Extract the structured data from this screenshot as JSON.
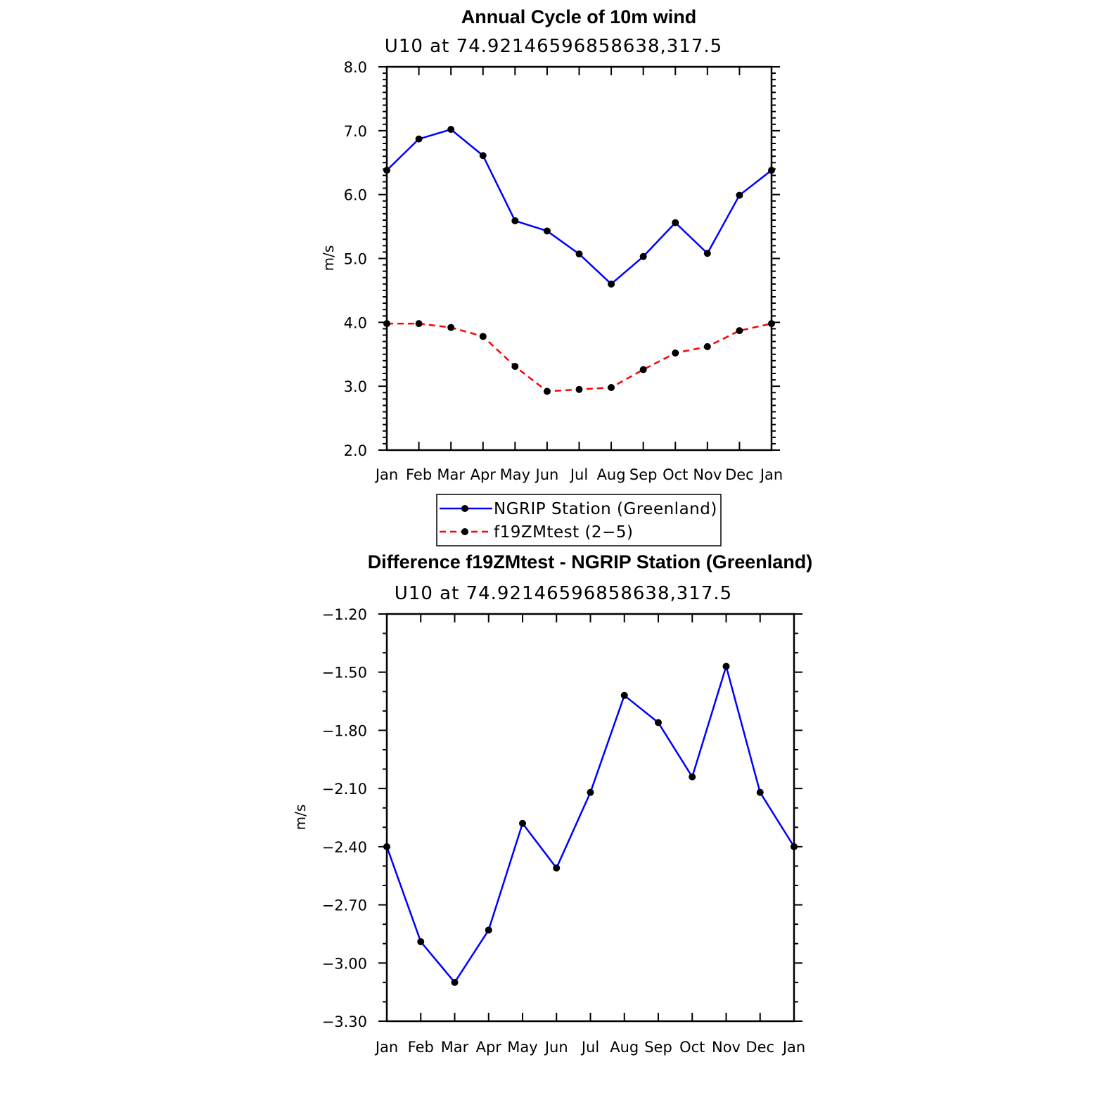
{
  "chart_data": [
    {
      "type": "line",
      "title": "Annual Cycle of 10m wind",
      "subtitle": "U10  at  74.92146596858638,317.5",
      "xlabel": "",
      "ylabel": "m/s",
      "categories": [
        "Jan",
        "Feb",
        "Mar",
        "Apr",
        "May",
        "Jun",
        "Jul",
        "Aug",
        "Sep",
        "Oct",
        "Nov",
        "Dec",
        "Jan"
      ],
      "ylim": [
        2.0,
        8.0
      ],
      "yticks": [
        2.0,
        3.0,
        4.0,
        5.0,
        6.0,
        7.0,
        8.0
      ],
      "ytick_labels": [
        "2.0",
        "3.0",
        "4.0",
        "5.0",
        "6.0",
        "7.0",
        "8.0"
      ],
      "series": [
        {
          "name": "NGRIP Station (Greenland)",
          "color": "#0000ff",
          "dash": "solid",
          "values": [
            6.38,
            6.87,
            7.02,
            6.61,
            5.59,
            5.43,
            5.07,
            4.6,
            5.03,
            5.56,
            5.08,
            5.99,
            6.38
          ]
        },
        {
          "name": "f19ZMtest (2-5)",
          "color": "#ff0000",
          "dash": "dashed",
          "values": [
            3.98,
            3.98,
            3.92,
            3.78,
            3.31,
            2.92,
            2.95,
            2.98,
            3.26,
            3.52,
            3.62,
            3.87,
            3.98
          ]
        }
      ],
      "legend": {
        "position": "bottom",
        "entries": [
          "NGRIP Station (Greenland)",
          "f19ZMtest (2−5)"
        ]
      }
    },
    {
      "type": "line",
      "title": "Difference f19ZMtest - NGRIP Station (Greenland)",
      "subtitle": "U10  at  74.92146596858638,317.5",
      "xlabel": "",
      "ylabel": "m/s",
      "categories": [
        "Jan",
        "Feb",
        "Mar",
        "Apr",
        "May",
        "Jun",
        "Jul",
        "Aug",
        "Sep",
        "Oct",
        "Nov",
        "Dec",
        "Jan"
      ],
      "ylim": [
        -3.3,
        -1.2
      ],
      "yticks": [
        -3.3,
        -3.0,
        -2.7,
        -2.4,
        -2.1,
        -1.8,
        -1.5,
        -1.2
      ],
      "ytick_labels": [
        "−3.30",
        "−3.00",
        "−2.70",
        "−2.40",
        "−2.10",
        "−1.80",
        "−1.50",
        "−1.20"
      ],
      "series": [
        {
          "name": "Difference",
          "color": "#0000ff",
          "dash": "solid",
          "values": [
            -2.4,
            -2.89,
            -3.1,
            -2.83,
            -2.28,
            -2.51,
            -2.12,
            -1.62,
            -1.76,
            -2.04,
            -1.47,
            -2.12,
            -2.4
          ]
        }
      ]
    }
  ]
}
